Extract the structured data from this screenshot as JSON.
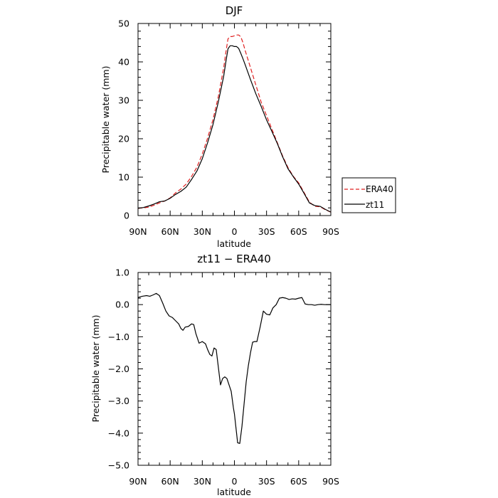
{
  "chart_data": [
    {
      "type": "line",
      "title": "DJF",
      "xlabel": "latitude",
      "ylabel": "Precipitable water (mm)",
      "xlim": [
        90,
        -90
      ],
      "ylim": [
        0,
        50
      ],
      "x_ticks": [
        90,
        60,
        30,
        0,
        -30,
        -60,
        -90
      ],
      "x_tick_labels": [
        "90N",
        "60N",
        "30N",
        "0",
        "30S",
        "60S",
        "90S"
      ],
      "y_ticks": [
        0,
        10,
        20,
        30,
        40,
        50
      ],
      "y_tick_labels": [
        "0",
        "10",
        "20",
        "30",
        "40",
        "50"
      ],
      "grid": false,
      "legend_position": "right",
      "x": [
        90,
        85,
        80,
        75,
        70,
        65,
        60,
        55,
        50,
        45,
        40,
        35,
        30,
        25,
        20,
        15,
        10,
        8,
        6,
        4,
        2,
        0,
        -2,
        -4,
        -6,
        -8,
        -10,
        -15,
        -20,
        -25,
        -30,
        -35,
        -40,
        -45,
        -50,
        -55,
        -60,
        -65,
        -70,
        -75,
        -80,
        -85,
        -90
      ],
      "series": [
        {
          "name": "ERA40",
          "color": "#e02020",
          "dash": "dashed",
          "values": [
            1.9,
            2.0,
            2.2,
            2.7,
            3.3,
            3.8,
            4.6,
            5.9,
            6.9,
            8.2,
            10.2,
            12.6,
            16.0,
            20.2,
            25.0,
            31.0,
            38.5,
            42.5,
            46.0,
            46.6,
            46.6,
            46.8,
            47.0,
            47.0,
            46.5,
            45.0,
            43.0,
            38.5,
            34.0,
            29.5,
            26.0,
            22.5,
            19.0,
            15.5,
            12.5,
            10.2,
            8.5,
            6.0,
            3.5,
            2.4,
            2.3,
            1.5,
            0.9
          ]
        },
        {
          "name": "zt11",
          "color": "#000000",
          "dash": "solid",
          "values": [
            1.9,
            2.1,
            2.5,
            3.0,
            3.6,
            3.8,
            4.5,
            5.5,
            6.3,
            7.4,
            9.4,
            11.6,
            14.8,
            19.0,
            23.7,
            29.6,
            36.3,
            40.0,
            43.4,
            44.2,
            44.2,
            44.0,
            44.0,
            43.5,
            42.2,
            40.8,
            39.3,
            35.4,
            31.7,
            28.4,
            24.9,
            21.9,
            18.8,
            15.3,
            12.2,
            10.1,
            8.2,
            5.8,
            3.3,
            2.6,
            2.4,
            1.6,
            0.9
          ]
        }
      ]
    },
    {
      "type": "line",
      "title": "zt11 − ERA40",
      "xlabel": "latitude",
      "ylabel": "Precipitable water (mm)",
      "xlim": [
        90,
        -90
      ],
      "ylim": [
        -5,
        1
      ],
      "x_ticks": [
        90,
        60,
        30,
        0,
        -30,
        -60,
        -90
      ],
      "x_tick_labels": [
        "90N",
        "60N",
        "30N",
        "0",
        "30S",
        "60S",
        "90S"
      ],
      "y_ticks": [
        1,
        0,
        -1,
        -2,
        -3,
        -4,
        -5
      ],
      "y_tick_labels": [
        "1.0",
        "0.0",
        "−1.0",
        "−2.0",
        "−3.0",
        "−4.0",
        "−5.0"
      ],
      "grid": false,
      "series": [
        {
          "color": "#000000",
          "dash": "solid",
          "x": [
            90,
            86,
            82,
            79,
            76,
            73,
            70,
            67,
            64,
            61,
            58,
            55,
            52,
            50,
            48,
            46,
            43,
            40,
            38,
            36,
            33,
            30,
            27,
            25,
            23,
            21,
            19,
            17,
            15,
            13,
            11,
            9,
            7,
            5,
            3,
            1,
            0,
            -1,
            -3,
            -5,
            -7,
            -9,
            -11,
            -13,
            -15,
            -17,
            -19,
            -21,
            -24,
            -27,
            -30,
            -33,
            -36,
            -39,
            -42,
            -45,
            -48,
            -51,
            -54,
            -57,
            -60,
            -63,
            -66,
            -69,
            -72,
            -75,
            -78,
            -81,
            -84,
            -87,
            -90
          ],
          "values": [
            0.22,
            0.26,
            0.28,
            0.26,
            0.3,
            0.35,
            0.28,
            0.05,
            -0.2,
            -0.35,
            -0.4,
            -0.5,
            -0.6,
            -0.74,
            -0.8,
            -0.7,
            -0.68,
            -0.6,
            -0.62,
            -0.9,
            -1.2,
            -1.15,
            -1.22,
            -1.4,
            -1.55,
            -1.6,
            -1.35,
            -1.4,
            -1.95,
            -2.5,
            -2.3,
            -2.25,
            -2.3,
            -2.5,
            -2.7,
            -3.2,
            -3.4,
            -3.7,
            -4.3,
            -4.32,
            -3.8,
            -3.1,
            -2.4,
            -1.9,
            -1.5,
            -1.17,
            -1.15,
            -1.15,
            -0.7,
            -0.2,
            -0.3,
            -0.32,
            -0.1,
            0.0,
            0.2,
            0.22,
            0.2,
            0.16,
            0.18,
            0.17,
            0.2,
            0.22,
            0.02,
            0.0,
            0.0,
            -0.02,
            0.0,
            0.01,
            0.0,
            0.0,
            0.0
          ]
        }
      ]
    }
  ]
}
